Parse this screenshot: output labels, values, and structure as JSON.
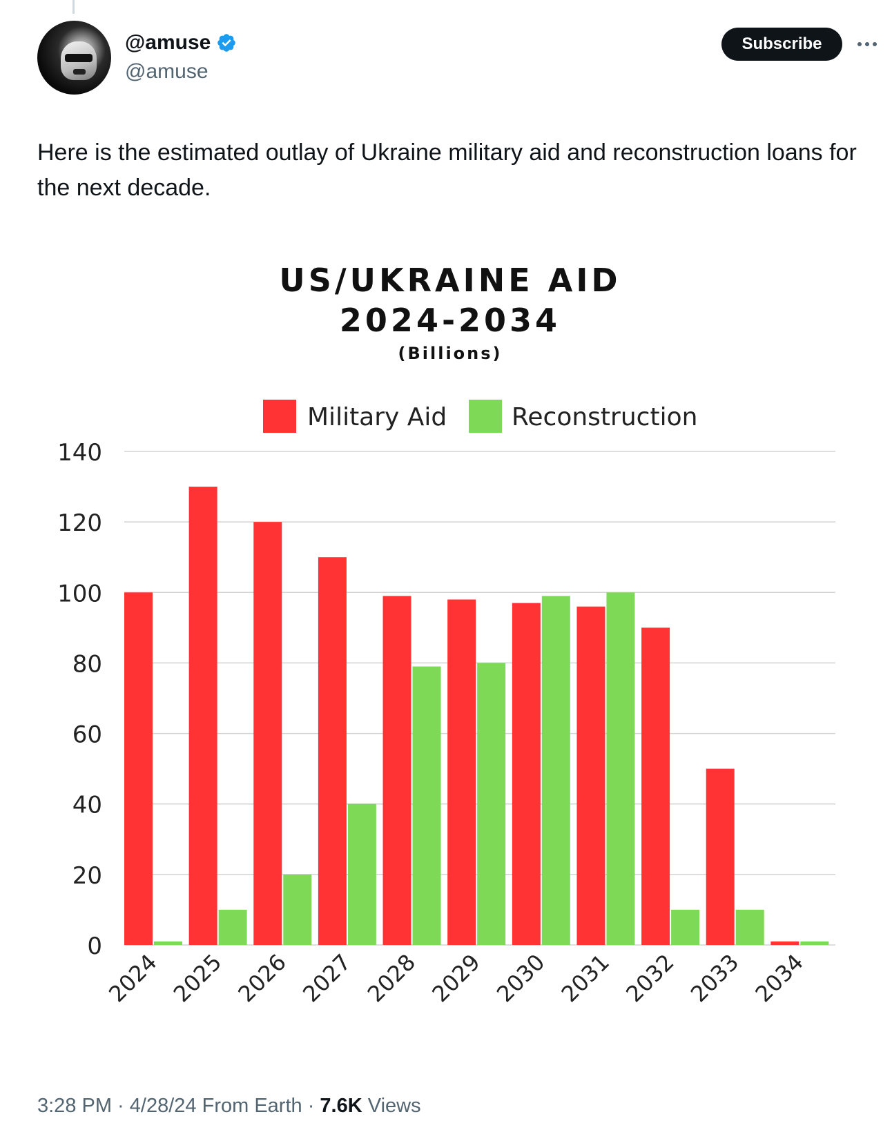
{
  "tweet": {
    "display_name": "@amuse",
    "handle": "@amuse",
    "subscribe_label": "Subscribe",
    "text": "Here is the estimated outlay of Ukraine military aid and reconstruction loans for the next decade.",
    "time": "3:28 PM",
    "sep1": " · ",
    "date": "4/28/24",
    "location": " From Earth",
    "sep2": " · ",
    "views_count": "7.6K",
    "views_label": " Views",
    "icons": {
      "avatar": "stormtrooper-avatar",
      "verified": "verified-badge-icon",
      "more": "more-horizontal-icon"
    },
    "colors": {
      "verified": "#1d9bf0",
      "subscribe_bg": "#0f1419"
    }
  },
  "chart_data": {
    "type": "bar",
    "title_line1": "US/UKRAINE AID",
    "title_line2": "2024-2034",
    "subtitle": "(Billions)",
    "categories": [
      "2024",
      "2025",
      "2026",
      "2027",
      "2028",
      "2029",
      "2030",
      "2031",
      "2032",
      "2033",
      "2034"
    ],
    "series": [
      {
        "name": "Military Aid",
        "color": "#ff3333",
        "values": [
          100,
          130,
          120,
          110,
          99,
          98,
          97,
          96,
          90,
          50,
          1
        ]
      },
      {
        "name": "Reconstruction",
        "color": "#7ed957",
        "values": [
          1,
          10,
          20,
          40,
          79,
          80,
          99,
          100,
          10,
          10,
          1
        ]
      }
    ],
    "ylim": [
      0,
      140
    ],
    "yticks": [
      "0",
      "20",
      "40",
      "60",
      "80",
      "100",
      "120",
      "140"
    ],
    "grid": true,
    "legend_position": "top-center"
  }
}
